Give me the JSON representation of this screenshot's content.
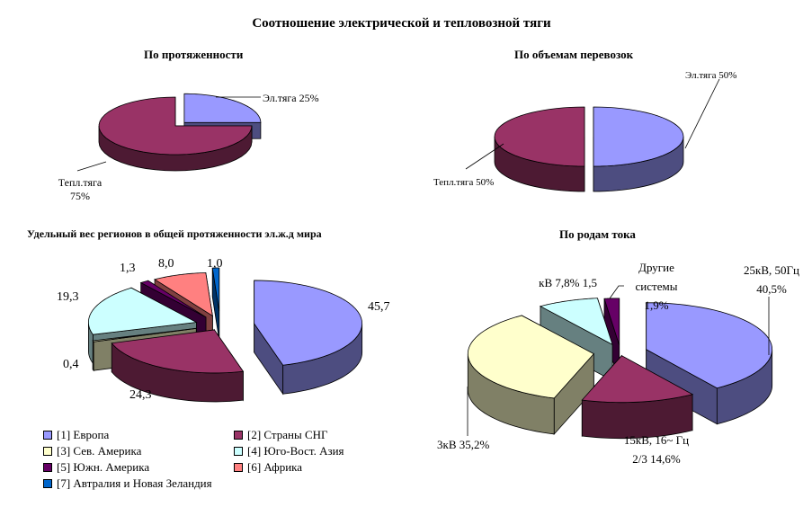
{
  "title": "Соотношение электрической и тепловозной тяги",
  "chart_data": [
    {
      "type": "pie",
      "title": "По протяженности",
      "categories": [
        "Эл.тяга",
        "Тепл.тяга"
      ],
      "values": [
        25,
        75
      ],
      "labels": [
        "Эл.тяга 25%",
        "Тепл.тяга 75%"
      ],
      "colors": [
        "#9999ff",
        "#993366"
      ]
    },
    {
      "type": "pie",
      "title": "По объемам перевозок",
      "categories": [
        "Эл.тяга",
        "Тепл.тяга"
      ],
      "values": [
        50,
        50
      ],
      "labels": [
        "Эл.тяга 50%",
        "Тепл.тяга 50%"
      ],
      "colors": [
        "#9999ff",
        "#993366"
      ]
    },
    {
      "type": "pie",
      "title": "Удельный вес регионов в общей протяженности эл.ж.д  мира",
      "categories": [
        "[1] Европа",
        "[2] Страны СНГ",
        "[3] Сев. Америка",
        "[4] Юго-Вост. Азия",
        "[5] Южн. Америка",
        "[6] Африка",
        "[7] Автралия и Новая Зеландия"
      ],
      "values": [
        45.7,
        24.3,
        0.4,
        19.3,
        1.3,
        8.0,
        1.0
      ],
      "labels": [
        "45,7",
        "24,3",
        "0,4",
        "19,3",
        "1,3",
        "8,0",
        "1,0"
      ],
      "colors": [
        "#9999ff",
        "#993366",
        "#ffffcc",
        "#ccffff",
        "#660066",
        "#ff8080",
        "#0066cc"
      ],
      "legend": "bottom"
    },
    {
      "type": "pie",
      "title": "По родам тока",
      "categories": [
        "25кВ, 50Гц",
        "15кВ, 16 2/3 Гц",
        "3кВ",
        "1,5 кВ",
        "Другие системы"
      ],
      "values": [
        40.5,
        14.6,
        35.2,
        7.8,
        1.9
      ],
      "labels": [
        "25кВ, 50Гц 40,5%",
        "15кВ, 16~ Гц 2/3 14,6%",
        "3кВ 35,2%",
        "1,5 кВ 7,8%",
        "Другие системы 1,9%"
      ],
      "colors": [
        "#9999ff",
        "#993366",
        "#ffffcc",
        "#ccffff",
        "#660066"
      ]
    }
  ]
}
